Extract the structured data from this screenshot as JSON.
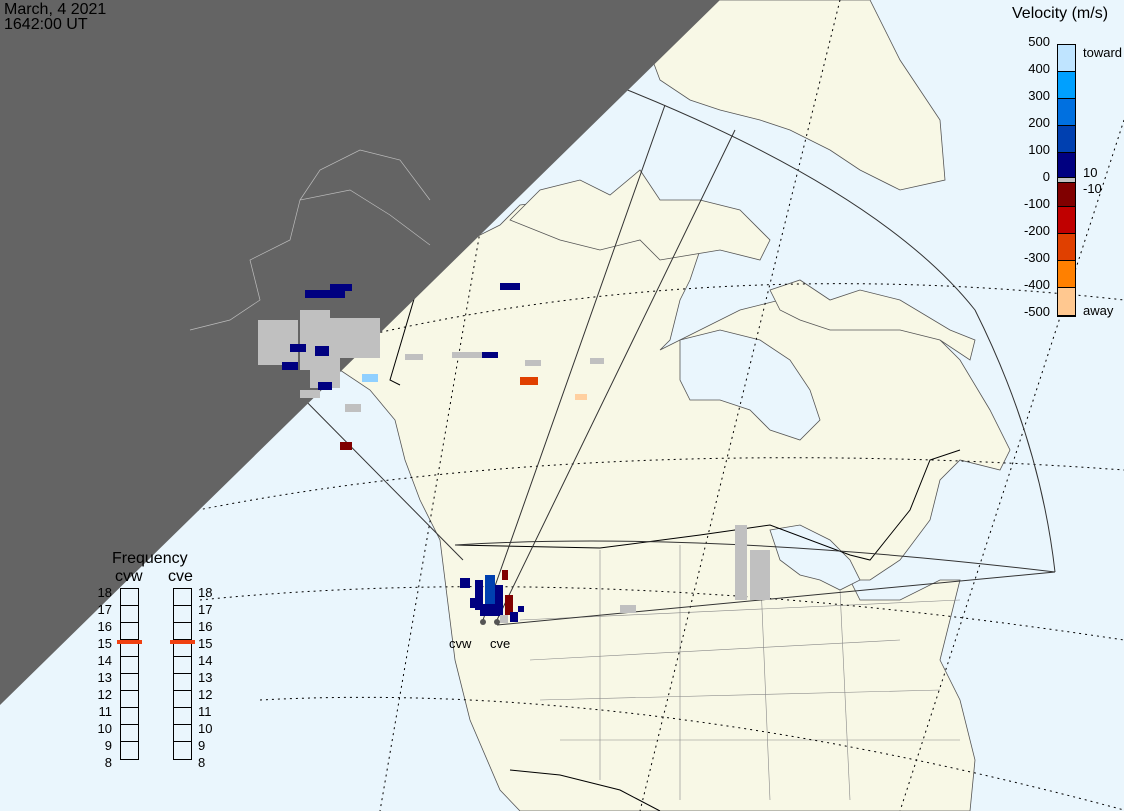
{
  "header": {
    "date": "March, 4 2021",
    "time": "1642:00 UT"
  },
  "velocity_legend": {
    "title": "Velocity (m/s)",
    "ticks": [
      "500",
      "400",
      "300",
      "200",
      "100",
      "0",
      "-100",
      "-200",
      "-300",
      "-400",
      "-500"
    ],
    "toward_label": "toward",
    "away_label": "away",
    "ground_scatter_upper": "10",
    "ground_scatter_lower": "-10",
    "colors": [
      "#bfe4ff",
      "#00a0ff",
      "#0070e0",
      "#0040b0",
      "#000080",
      "#c0c0c0",
      "#800000",
      "#c00000",
      "#e04000",
      "#ff8000",
      "#ffc890"
    ]
  },
  "frequency_legend": {
    "title": "Frequency",
    "radars": [
      {
        "name": "cvw",
        "value_mhz": 14.9
      },
      {
        "name": "cve",
        "value_mhz": 14.9
      }
    ],
    "ticks": [
      "18",
      "17",
      "16",
      "15",
      "14",
      "13",
      "12",
      "11",
      "10",
      "9",
      "8"
    ],
    "marker_color": "#f04010"
  },
  "radar_sites": [
    {
      "label": "cvw"
    },
    {
      "label": "cve"
    }
  ],
  "colors": {
    "ocean": "#eaf6fd",
    "land": "#f8f8e6",
    "night": "#646464",
    "ground_scatter": "#c0c0c0"
  }
}
